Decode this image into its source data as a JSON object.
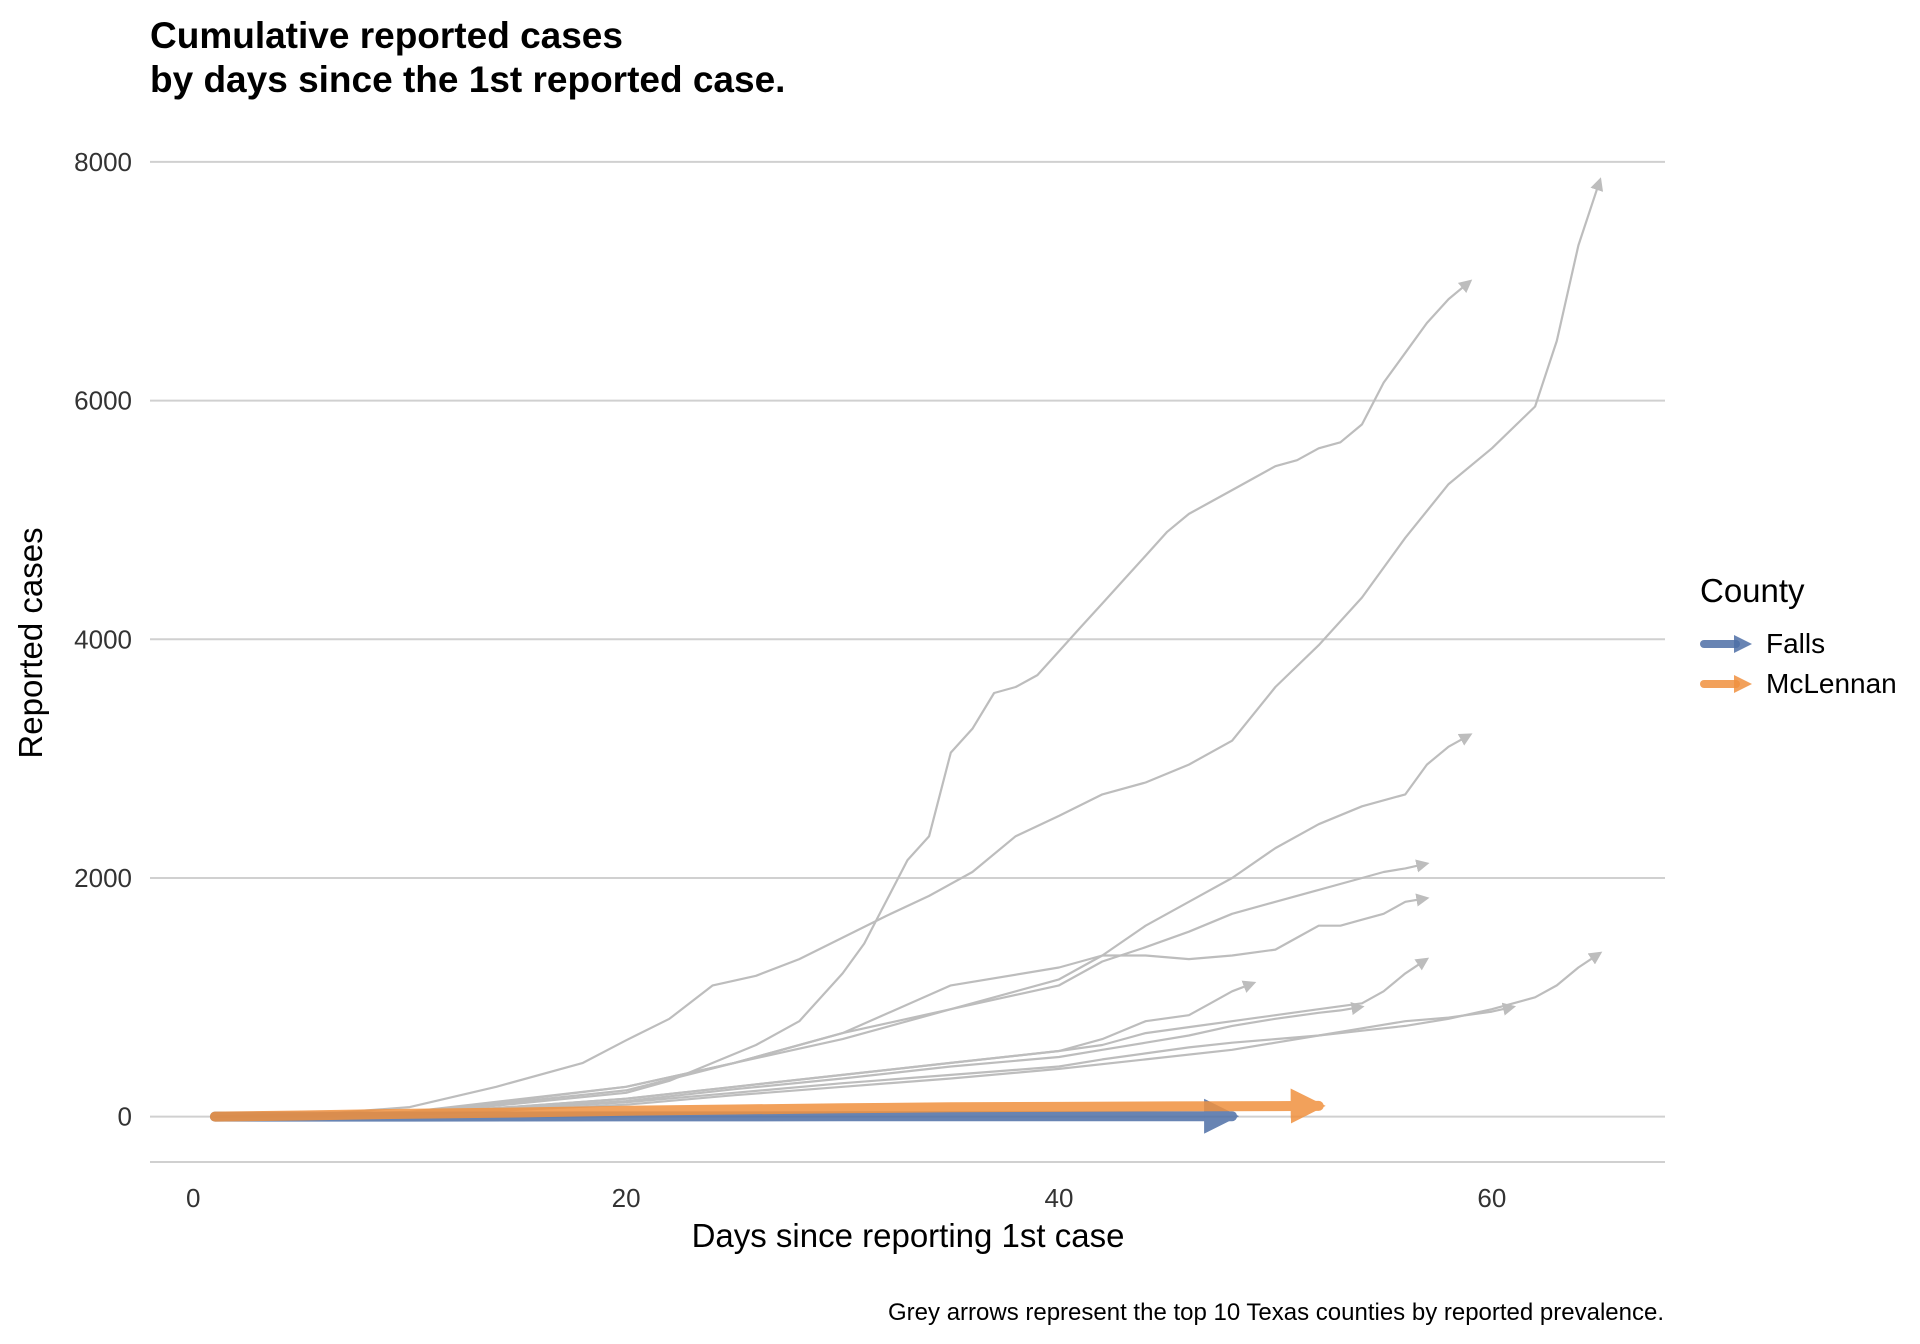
{
  "chart_data": {
    "type": "line",
    "title_lines": [
      "Cumulative reported cases",
      "by days since the 1st reported case."
    ],
    "xlabel": "Days since reporting 1st case",
    "ylabel": "Reported cases",
    "caption": "Grey arrows represent the top 10 Texas counties by reported prevalence.",
    "xlim": [
      -2,
      68
    ],
    "ylim": [
      -380,
      8200
    ],
    "x_ticks": [
      0,
      20,
      40,
      60
    ],
    "y_ticks": [
      0,
      2000,
      4000,
      6000,
      8000
    ],
    "x_tick_labels": [
      "0",
      "20",
      "40",
      "60"
    ],
    "y_tick_labels": [
      "0",
      "2000",
      "4000",
      "6000",
      "8000"
    ],
    "grid": "horizontal",
    "legend": {
      "title": "County",
      "position": "right",
      "entries": [
        {
          "label": "Falls",
          "color": "#4E6FA6"
        },
        {
          "label": "McLennan",
          "color": "#F0913F"
        }
      ]
    },
    "background_series_color": "#BDBDBD",
    "background_series": [
      {
        "x": [
          1,
          5,
          10,
          14,
          18,
          20,
          22,
          24,
          26,
          28,
          30,
          32,
          34,
          36,
          38,
          40,
          42,
          44,
          46,
          48,
          50,
          52,
          54,
          56,
          58,
          60,
          62,
          63,
          64,
          65
        ],
        "y": [
          0,
          10,
          80,
          250,
          450,
          640,
          820,
          1100,
          1180,
          1320,
          1500,
          1680,
          1850,
          2050,
          2350,
          2520,
          2700,
          2800,
          2950,
          3150,
          3600,
          3950,
          4350,
          4850,
          5300,
          5600,
          5950,
          6500,
          7300,
          7850
        ]
      },
      {
        "x": [
          1,
          10,
          20,
          22,
          24,
          26,
          28,
          30,
          31,
          32,
          33,
          34,
          35,
          36,
          37,
          38,
          39,
          40,
          41,
          42,
          43,
          44,
          45,
          46,
          47,
          48,
          49,
          50,
          51,
          52,
          53,
          54,
          55,
          56,
          57,
          58,
          59
        ],
        "y": [
          0,
          20,
          200,
          300,
          450,
          600,
          800,
          1200,
          1450,
          1800,
          2150,
          2350,
          3050,
          3250,
          3550,
          3600,
          3700,
          3900,
          4100,
          4300,
          4500,
          4700,
          4900,
          5050,
          5150,
          5250,
          5350,
          5450,
          5500,
          5600,
          5650,
          5800,
          6150,
          6400,
          6650,
          6850,
          7000
        ]
      },
      {
        "x": [
          1,
          10,
          20,
          25,
          30,
          35,
          40,
          42,
          44,
          46,
          48,
          50,
          52,
          54,
          56,
          57,
          58,
          59
        ],
        "y": [
          0,
          40,
          250,
          450,
          650,
          900,
          1150,
          1350,
          1600,
          1800,
          2000,
          2250,
          2450,
          2600,
          2700,
          2950,
          3100,
          3200
        ]
      },
      {
        "x": [
          1,
          10,
          20,
          25,
          30,
          35,
          40,
          42,
          44,
          46,
          48,
          50,
          52,
          54,
          55,
          56,
          57
        ],
        "y": [
          0,
          30,
          220,
          450,
          700,
          900,
          1100,
          1300,
          1420,
          1550,
          1700,
          1800,
          1900,
          2000,
          2050,
          2080,
          2120
        ]
      },
      {
        "x": [
          1,
          10,
          20,
          25,
          30,
          35,
          40,
          42,
          44,
          46,
          48,
          50,
          51,
          52,
          53,
          54,
          55,
          56,
          57
        ],
        "y": [
          0,
          30,
          250,
          450,
          700,
          1100,
          1250,
          1350,
          1350,
          1320,
          1350,
          1400,
          1500,
          1600,
          1600,
          1650,
          1700,
          1800,
          1830
        ]
      },
      {
        "x": [
          1,
          10,
          20,
          25,
          30,
          35,
          40,
          42,
          44,
          46,
          48,
          50,
          52,
          54,
          55,
          56,
          57
        ],
        "y": [
          0,
          20,
          150,
          250,
          350,
          450,
          550,
          600,
          700,
          750,
          800,
          850,
          900,
          950,
          1050,
          1200,
          1320
        ]
      },
      {
        "x": [
          1,
          10,
          20,
          25,
          30,
          35,
          40,
          42,
          44,
          46,
          48,
          50,
          52,
          54,
          56,
          58,
          60,
          62,
          63,
          64,
          65
        ],
        "y": [
          0,
          20,
          120,
          200,
          280,
          350,
          420,
          480,
          530,
          580,
          620,
          650,
          680,
          720,
          760,
          820,
          900,
          1000,
          1100,
          1250,
          1370
        ]
      },
      {
        "x": [
          1,
          10,
          20,
          25,
          30,
          35,
          40,
          42,
          44,
          46,
          47,
          48,
          49
        ],
        "y": [
          0,
          20,
          150,
          250,
          350,
          450,
          550,
          650,
          800,
          850,
          950,
          1050,
          1120
        ]
      },
      {
        "x": [
          1,
          10,
          20,
          25,
          30,
          35,
          40,
          42,
          44,
          46,
          48,
          50,
          52,
          53,
          54
        ],
        "y": [
          0,
          20,
          130,
          230,
          320,
          420,
          500,
          560,
          620,
          680,
          760,
          820,
          870,
          890,
          920
        ]
      },
      {
        "x": [
          1,
          10,
          20,
          25,
          30,
          35,
          40,
          44,
          48,
          50,
          52,
          54,
          56,
          58,
          60,
          61
        ],
        "y": [
          0,
          15,
          100,
          180,
          250,
          320,
          400,
          480,
          560,
          620,
          680,
          740,
          800,
          830,
          880,
          920
        ]
      }
    ],
    "series": [
      {
        "name": "Falls",
        "color": "#4E6FA6",
        "x": [
          1,
          10,
          20,
          30,
          40,
          48
        ],
        "y": [
          0,
          0,
          2,
          3,
          4,
          4
        ]
      },
      {
        "name": "McLennan",
        "color": "#F0913F",
        "x": [
          1,
          5,
          10,
          15,
          20,
          25,
          30,
          35,
          40,
          45,
          50,
          52
        ],
        "y": [
          0,
          10,
          25,
          35,
          50,
          60,
          70,
          78,
          82,
          86,
          88,
          90
        ]
      }
    ]
  }
}
